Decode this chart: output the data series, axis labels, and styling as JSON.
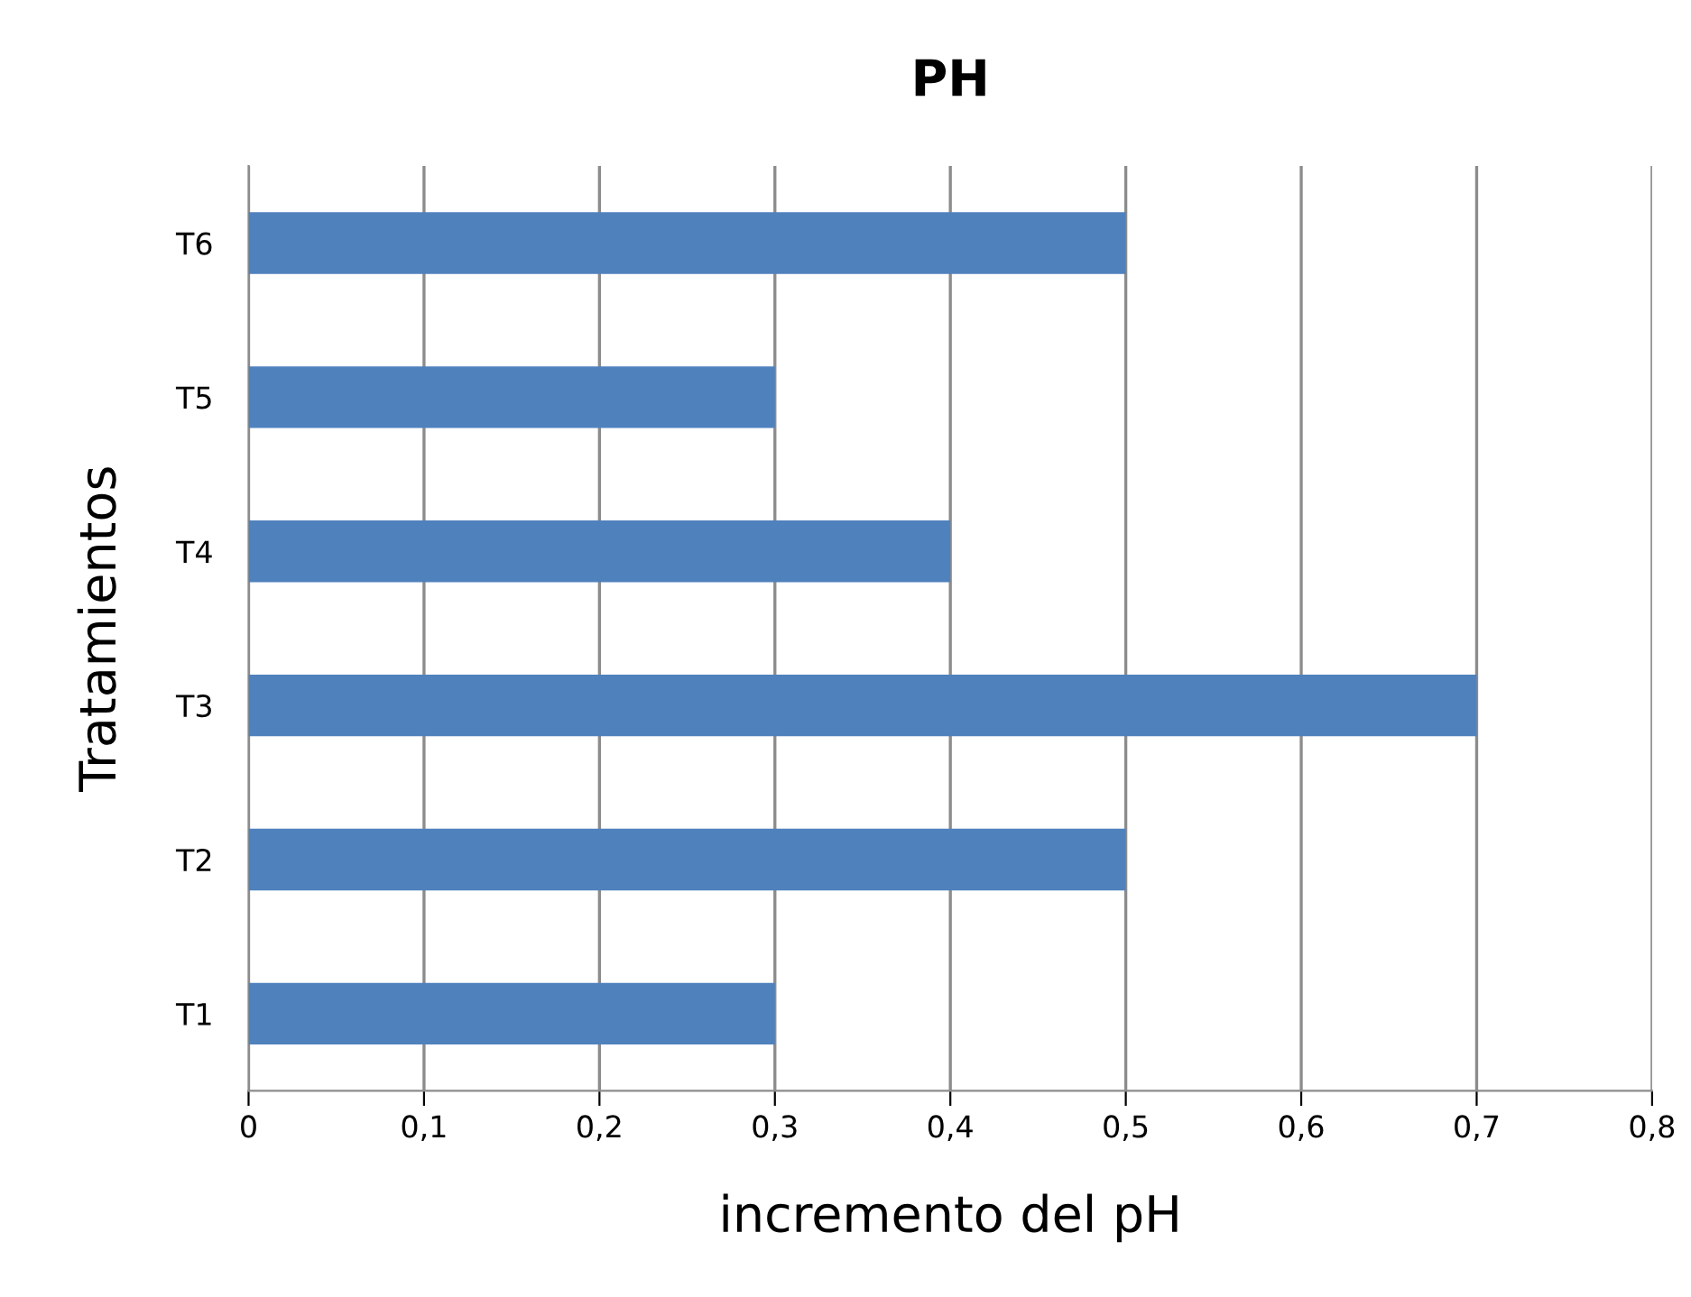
{
  "chart_data": {
    "type": "bar",
    "orientation": "horizontal",
    "title": "PH",
    "xlabel": "incremento del pH",
    "ylabel": "Tratamientos",
    "categories": [
      "T6",
      "T5",
      "T4",
      "T3",
      "T2",
      "T1"
    ],
    "values": [
      0.5,
      0.3,
      0.4,
      0.7,
      0.5,
      0.3
    ],
    "color": "#4f81bd",
    "xlim": [
      0,
      0.8
    ],
    "xticks": [
      0,
      {
        "value": 0.1,
        "label": "0,1"
      },
      {
        "value": 0.2,
        "label": "0,2"
      },
      {
        "value": 0.3,
        "label": "0,3"
      },
      {
        "value": 0.4,
        "label": "0,4"
      },
      {
        "value": 0.5,
        "label": "0,5"
      },
      {
        "value": 0.6,
        "label": "0,6"
      },
      {
        "value": 0.7,
        "label": "0,7"
      },
      {
        "value": 0.8,
        "label": "0,8"
      }
    ],
    "grid": "x",
    "legend": false
  }
}
